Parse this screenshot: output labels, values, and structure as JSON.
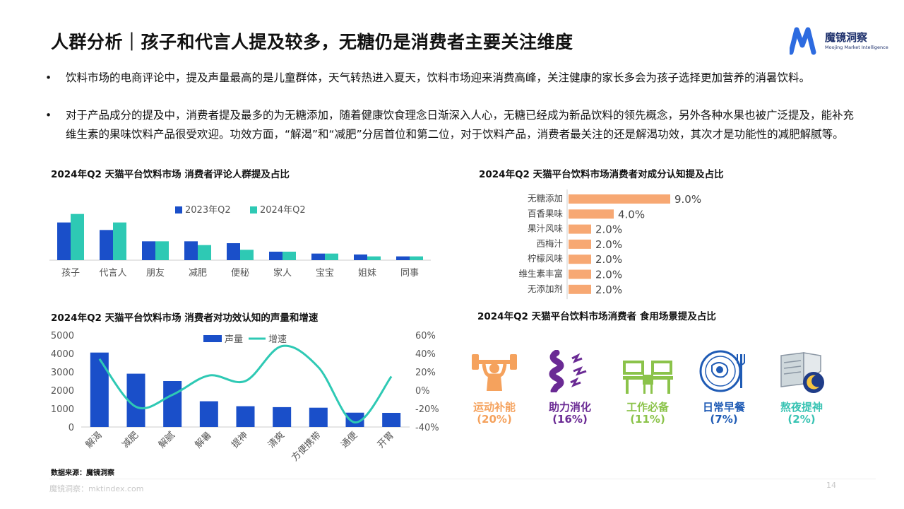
{
  "title": "人群分析｜孩子和代言人提及较多，无糖仍是消费者主要关注维度",
  "logo": {
    "name": "魔镜洞察",
    "subtitle": "Moojing Market Intelligence",
    "brand_color": "#2d6be0"
  },
  "bullets": [
    {
      "symbol": "•",
      "text": "饮料市场的电商评论中，提及声量最高的是儿童群体，天气转热进入夏天，饮料市场迎来消费高峰，关注健康的家长多会为孩子选择更加营养的消暑饮料。"
    },
    {
      "symbol": "•",
      "text": "对于产品成分的提及中，消费者提及最多的为无糖添加，随着健康饮食理念日渐深入人心，无糖已经成为新品饮料的领先概念，另外各种水果也被广泛提及，能补充维生素的果味饮料产品很受欢迎。功效方面，“解渴”和“减肥”分居首位和第二位，对于饮料产品，消费者最关注的还是解渴功效，其次才是功能性的减肥解腻等。"
    }
  ],
  "chart_titles": {
    "people": "2024年Q2 天猫平台饮料市场 消费者评论人群提及占比",
    "ingredient": "2024年Q2 天猫平台饮料市场消费者对成分认知提及占比",
    "efficacy": "2024年Q2 天猫平台饮料市场 消费者对功效认知的声量和增速",
    "scenario": "2024年Q2 天猫平台饮料市场消费者 食用场景提及占比"
  },
  "chart_data": [
    {
      "type": "bar",
      "categories": [
        "孩子",
        "代言人",
        "朋友",
        "减肥",
        "便秘",
        "家人",
        "宝宝",
        "姐妹",
        "同事"
      ],
      "series": [
        {
          "name": "2023年Q2",
          "values": [
            40,
            32,
            20,
            20,
            18,
            9,
            7,
            6,
            4
          ],
          "color": "#1a4fc9"
        },
        {
          "name": "2024年Q2",
          "values": [
            49,
            40,
            20,
            16,
            11,
            9,
            7,
            4,
            4
          ],
          "color": "#2ec9b4"
        }
      ],
      "ylim": [
        0,
        60
      ],
      "legend": "top",
      "grid": false
    },
    {
      "type": "bar",
      "orientation": "horizontal",
      "categories": [
        "无糖添加",
        "百香果味",
        "果汁风味",
        "西梅汁",
        "柠檬风味",
        "维生素丰富",
        "无添加剂"
      ],
      "values": [
        9.0,
        4.0,
        2.0,
        2.0,
        2.0,
        2.0,
        2.0
      ],
      "data_labels": [
        "9.0%",
        "4.0%",
        "2.0%",
        "2.0%",
        "2.0%",
        "2.0%",
        "2.0%"
      ],
      "color": "#f7a873",
      "xlim": [
        0,
        10
      ]
    },
    {
      "type": "bar",
      "categories": [
        "解渴",
        "减肥",
        "解腻",
        "解暑",
        "提神",
        "清爽",
        "方便携带",
        "通便",
        "开胃"
      ],
      "series": [
        {
          "name": "声量",
          "type": "bar",
          "values": [
            4050,
            2900,
            2500,
            1400,
            1130,
            1080,
            1050,
            780,
            770
          ],
          "color": "#1a4fc9"
        },
        {
          "name": "增速",
          "type": "line",
          "axis": "right",
          "values": [
            34,
            -18,
            -5,
            16,
            10,
            48,
            25,
            -35,
            15
          ],
          "color": "#2ec9b4"
        }
      ],
      "ylim": [
        0,
        5000
      ],
      "yticks": [
        "5000",
        "4000",
        "3000",
        "2000",
        "1000",
        "0"
      ],
      "y2lim": [
        -40,
        60
      ],
      "y2ticks": [
        "60%",
        "40%",
        "20%",
        "0%",
        "-20%",
        "-40%"
      ],
      "legend": "top",
      "grid": false
    }
  ],
  "scenarios": [
    {
      "label": "运动补能",
      "pct": "(20%)",
      "color": "#f5a25d",
      "icon": "weightlifter-icon"
    },
    {
      "label": "助力消化",
      "pct": "(16%)",
      "color": "#6a2a94",
      "icon": "intestine-icon"
    },
    {
      "label": "工作必备",
      "pct": "(11%)",
      "color": "#8bc34a",
      "icon": "office-desk-icon"
    },
    {
      "label": "日常早餐",
      "pct": "(7%)",
      "color": "#1f5bb5",
      "icon": "breakfast-plate-icon"
    },
    {
      "label": "熬夜提神",
      "pct": "(2%)",
      "color": "#38c3b3",
      "icon": "night-book-icon"
    }
  ],
  "source": "数据来源：魔镜洞察",
  "footer": "魔镜洞察：mktindex.com",
  "page_number": "14"
}
